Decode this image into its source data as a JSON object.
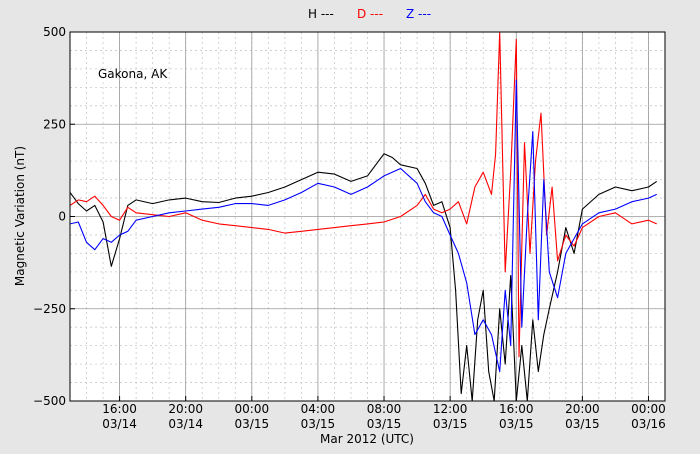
{
  "chart_data": {
    "type": "line",
    "xlabel": "Mar 2012 (UTC)",
    "ylabel": "Magnetic Variation (nT)",
    "annotation": "Gakona, AK",
    "ylim": [
      -500,
      500
    ],
    "xlim": [
      "2012-03-14 13:00",
      "2012-03-16 01:00"
    ],
    "y_ticks": [
      "500",
      "250",
      "0",
      "−250",
      "−500"
    ],
    "x_ticks": [
      {
        "time": "2012-03-14 16:00",
        "line1": "16:00",
        "line2": "03/14"
      },
      {
        "time": "2012-03-14 20:00",
        "line1": "20:00",
        "line2": "03/14"
      },
      {
        "time": "2012-03-15 00:00",
        "line1": "00:00",
        "line2": "03/15"
      },
      {
        "time": "2012-03-15 04:00",
        "line1": "04:00",
        "line2": "03/15"
      },
      {
        "time": "2012-03-15 08:00",
        "line1": "08:00",
        "line2": "03/15"
      },
      {
        "time": "2012-03-15 12:00",
        "line1": "12:00",
        "line2": "03/15"
      },
      {
        "time": "2012-03-15 16:00",
        "line1": "16:00",
        "line2": "03/15"
      },
      {
        "time": "2012-03-15 20:00",
        "line1": "20:00",
        "line2": "03/15"
      },
      {
        "time": "2012-03-16 00:00",
        "line1": "00:00",
        "line2": "03/16"
      }
    ],
    "grid": true,
    "legend_position": "top-center",
    "series": [
      {
        "name": "H ---",
        "color": "#000000",
        "points": [
          [
            "2012-03-14 13:00",
            65
          ],
          [
            "2012-03-14 13:30",
            35
          ],
          [
            "2012-03-14 14:00",
            15
          ],
          [
            "2012-03-14 14:30",
            30
          ],
          [
            "2012-03-14 15:00",
            -15
          ],
          [
            "2012-03-14 15:30",
            -135
          ],
          [
            "2012-03-14 16:00",
            -60
          ],
          [
            "2012-03-14 16:30",
            30
          ],
          [
            "2012-03-14 17:00",
            45
          ],
          [
            "2012-03-14 18:00",
            35
          ],
          [
            "2012-03-14 19:00",
            45
          ],
          [
            "2012-03-14 20:00",
            50
          ],
          [
            "2012-03-14 21:00",
            40
          ],
          [
            "2012-03-14 22:00",
            38
          ],
          [
            "2012-03-14 23:00",
            50
          ],
          [
            "2012-03-15 00:00",
            55
          ],
          [
            "2012-03-15 01:00",
            65
          ],
          [
            "2012-03-15 02:00",
            80
          ],
          [
            "2012-03-15 03:00",
            100
          ],
          [
            "2012-03-15 04:00",
            120
          ],
          [
            "2012-03-15 05:00",
            115
          ],
          [
            "2012-03-15 06:00",
            95
          ],
          [
            "2012-03-15 07:00",
            110
          ],
          [
            "2012-03-15 08:00",
            170
          ],
          [
            "2012-03-15 08:30",
            160
          ],
          [
            "2012-03-15 09:00",
            140
          ],
          [
            "2012-03-15 10:00",
            130
          ],
          [
            "2012-03-15 10:30",
            90
          ],
          [
            "2012-03-15 11:00",
            30
          ],
          [
            "2012-03-15 11:30",
            40
          ],
          [
            "2012-03-15 12:00",
            -30
          ],
          [
            "2012-03-15 12:20",
            -200
          ],
          [
            "2012-03-15 12:40",
            -480
          ],
          [
            "2012-03-15 13:00",
            -350
          ],
          [
            "2012-03-15 13:20",
            -500
          ],
          [
            "2012-03-15 13:40",
            -280
          ],
          [
            "2012-03-15 14:00",
            -200
          ],
          [
            "2012-03-15 14:20",
            -420
          ],
          [
            "2012-03-15 14:40",
            -500
          ],
          [
            "2012-03-15 15:00",
            -250
          ],
          [
            "2012-03-15 15:20",
            -400
          ],
          [
            "2012-03-15 15:40",
            -160
          ],
          [
            "2012-03-15 16:00",
            -500
          ],
          [
            "2012-03-15 16:20",
            -350
          ],
          [
            "2012-03-15 16:40",
            -500
          ],
          [
            "2012-03-15 17:00",
            -280
          ],
          [
            "2012-03-15 17:20",
            -420
          ],
          [
            "2012-03-15 17:40",
            -320
          ],
          [
            "2012-03-15 18:00",
            -250
          ],
          [
            "2012-03-15 18:30",
            -150
          ],
          [
            "2012-03-15 19:00",
            -30
          ],
          [
            "2012-03-15 19:30",
            -100
          ],
          [
            "2012-03-15 20:00",
            20
          ],
          [
            "2012-03-15 21:00",
            60
          ],
          [
            "2012-03-15 22:00",
            80
          ],
          [
            "2012-03-15 23:00",
            70
          ],
          [
            "2012-03-16 00:00",
            80
          ],
          [
            "2012-03-16 00:30",
            95
          ]
        ]
      },
      {
        "name": "D ---",
        "color": "#ff0000",
        "points": [
          [
            "2012-03-14 13:00",
            30
          ],
          [
            "2012-03-14 13:30",
            45
          ],
          [
            "2012-03-14 14:00",
            40
          ],
          [
            "2012-03-14 14:30",
            55
          ],
          [
            "2012-03-14 15:00",
            30
          ],
          [
            "2012-03-14 15:30",
            0
          ],
          [
            "2012-03-14 16:00",
            -10
          ],
          [
            "2012-03-14 16:30",
            25
          ],
          [
            "2012-03-14 17:00",
            10
          ],
          [
            "2012-03-14 18:00",
            5
          ],
          [
            "2012-03-14 19:00",
            0
          ],
          [
            "2012-03-14 20:00",
            10
          ],
          [
            "2012-03-14 21:00",
            -10
          ],
          [
            "2012-03-14 22:00",
            -20
          ],
          [
            "2012-03-14 23:00",
            -25
          ],
          [
            "2012-03-15 00:00",
            -30
          ],
          [
            "2012-03-15 01:00",
            -35
          ],
          [
            "2012-03-15 02:00",
            -45
          ],
          [
            "2012-03-15 03:00",
            -40
          ],
          [
            "2012-03-15 04:00",
            -35
          ],
          [
            "2012-03-15 05:00",
            -30
          ],
          [
            "2012-03-15 06:00",
            -25
          ],
          [
            "2012-03-15 07:00",
            -20
          ],
          [
            "2012-03-15 08:00",
            -15
          ],
          [
            "2012-03-15 09:00",
            0
          ],
          [
            "2012-03-15 10:00",
            30
          ],
          [
            "2012-03-15 10:30",
            60
          ],
          [
            "2012-03-15 11:00",
            20
          ],
          [
            "2012-03-15 11:30",
            10
          ],
          [
            "2012-03-15 12:00",
            20
          ],
          [
            "2012-03-15 12:30",
            40
          ],
          [
            "2012-03-15 13:00",
            -20
          ],
          [
            "2012-03-15 13:30",
            80
          ],
          [
            "2012-03-15 14:00",
            120
          ],
          [
            "2012-03-15 14:30",
            60
          ],
          [
            "2012-03-15 14:45",
            170
          ],
          [
            "2012-03-15 15:00",
            500
          ],
          [
            "2012-03-15 15:20",
            -150
          ],
          [
            "2012-03-15 15:40",
            120
          ],
          [
            "2012-03-15 16:00",
            480
          ],
          [
            "2012-03-15 16:10",
            -380
          ],
          [
            "2012-03-15 16:30",
            200
          ],
          [
            "2012-03-15 16:50",
            -100
          ],
          [
            "2012-03-15 17:10",
            150
          ],
          [
            "2012-03-15 17:30",
            280
          ],
          [
            "2012-03-15 17:50",
            -50
          ],
          [
            "2012-03-15 18:10",
            80
          ],
          [
            "2012-03-15 18:30",
            -120
          ],
          [
            "2012-03-15 19:00",
            -50
          ],
          [
            "2012-03-15 19:30",
            -80
          ],
          [
            "2012-03-15 20:00",
            -30
          ],
          [
            "2012-03-15 21:00",
            0
          ],
          [
            "2012-03-15 22:00",
            10
          ],
          [
            "2012-03-15 23:00",
            -20
          ],
          [
            "2012-03-16 00:00",
            -10
          ],
          [
            "2012-03-16 00:30",
            -20
          ]
        ]
      },
      {
        "name": "Z ---",
        "color": "#0000ff",
        "points": [
          [
            "2012-03-14 13:00",
            -20
          ],
          [
            "2012-03-14 13:30",
            -15
          ],
          [
            "2012-03-14 14:00",
            -70
          ],
          [
            "2012-03-14 14:30",
            -90
          ],
          [
            "2012-03-14 15:00",
            -60
          ],
          [
            "2012-03-14 15:30",
            -70
          ],
          [
            "2012-03-14 16:00",
            -50
          ],
          [
            "2012-03-14 16:30",
            -40
          ],
          [
            "2012-03-14 17:00",
            -10
          ],
          [
            "2012-03-14 18:00",
            0
          ],
          [
            "2012-03-14 19:00",
            10
          ],
          [
            "2012-03-14 20:00",
            15
          ],
          [
            "2012-03-14 21:00",
            20
          ],
          [
            "2012-03-14 22:00",
            25
          ],
          [
            "2012-03-14 23:00",
            35
          ],
          [
            "2012-03-15 00:00",
            35
          ],
          [
            "2012-03-15 01:00",
            30
          ],
          [
            "2012-03-15 02:00",
            45
          ],
          [
            "2012-03-15 03:00",
            65
          ],
          [
            "2012-03-15 04:00",
            90
          ],
          [
            "2012-03-15 05:00",
            80
          ],
          [
            "2012-03-15 06:00",
            60
          ],
          [
            "2012-03-15 07:00",
            80
          ],
          [
            "2012-03-15 08:00",
            110
          ],
          [
            "2012-03-15 09:00",
            130
          ],
          [
            "2012-03-15 10:00",
            90
          ],
          [
            "2012-03-15 10:30",
            40
          ],
          [
            "2012-03-15 11:00",
            10
          ],
          [
            "2012-03-15 11:30",
            0
          ],
          [
            "2012-03-15 12:00",
            -50
          ],
          [
            "2012-03-15 12:30",
            -100
          ],
          [
            "2012-03-15 13:00",
            -180
          ],
          [
            "2012-03-15 13:30",
            -320
          ],
          [
            "2012-03-15 14:00",
            -280
          ],
          [
            "2012-03-15 14:30",
            -320
          ],
          [
            "2012-03-15 15:00",
            -420
          ],
          [
            "2012-03-15 15:20",
            -200
          ],
          [
            "2012-03-15 15:40",
            -350
          ],
          [
            "2012-03-15 16:00",
            370
          ],
          [
            "2012-03-15 16:20",
            -300
          ],
          [
            "2012-03-15 16:40",
            0
          ],
          [
            "2012-03-15 17:00",
            230
          ],
          [
            "2012-03-15 17:20",
            -280
          ],
          [
            "2012-03-15 17:40",
            100
          ],
          [
            "2012-03-15 18:00",
            -150
          ],
          [
            "2012-03-15 18:30",
            -220
          ],
          [
            "2012-03-15 19:00",
            -100
          ],
          [
            "2012-03-15 19:30",
            -60
          ],
          [
            "2012-03-15 20:00",
            -20
          ],
          [
            "2012-03-15 21:00",
            10
          ],
          [
            "2012-03-15 22:00",
            20
          ],
          [
            "2012-03-15 23:00",
            40
          ],
          [
            "2012-03-16 00:00",
            50
          ],
          [
            "2012-03-16 00:30",
            60
          ]
        ]
      }
    ]
  }
}
